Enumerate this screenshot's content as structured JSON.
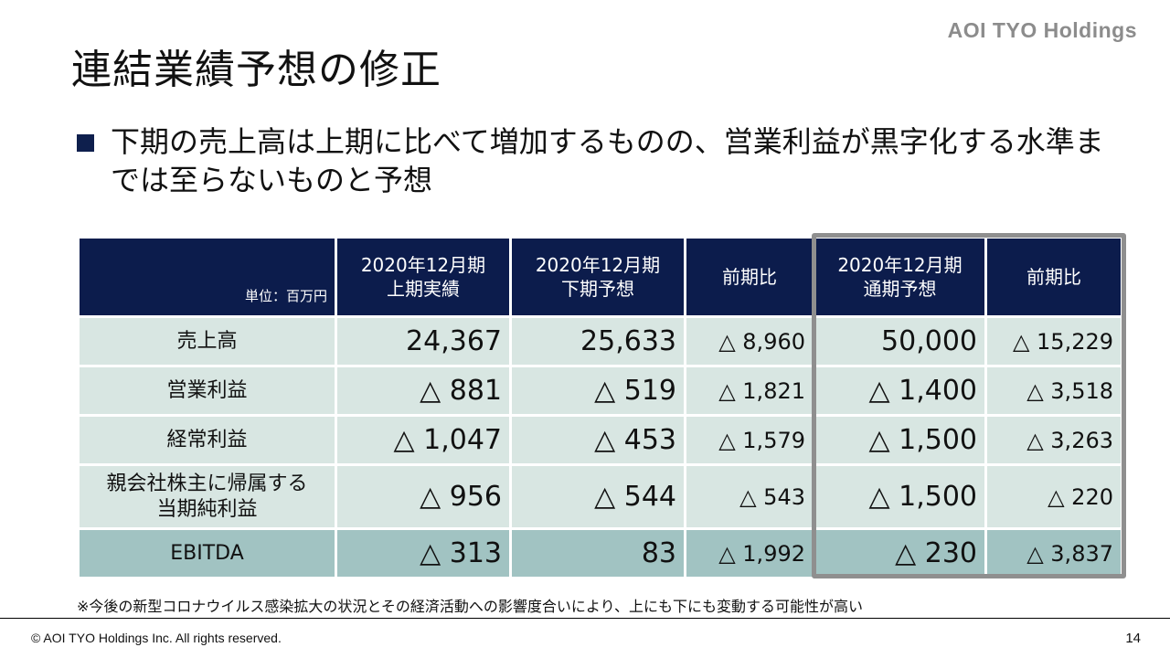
{
  "brand": "AOI TYO Holdings",
  "title": "連結業績予想の修正",
  "bullet": "下期の売上高は上期に比べて増加するものの、営業利益が黒字化する水準までは至らないものと予想",
  "table": {
    "unit_label": "単位：百万円",
    "headers": [
      "2020年12月期\n上期実績",
      "2020年12月期\n下期予想",
      "前期比",
      "2020年12月期\n通期予想",
      "前期比"
    ],
    "rows": [
      {
        "label": "売上高",
        "cells": [
          "24,367",
          "25,633",
          "△ 8,960",
          "50,000",
          "△ 15,229"
        ]
      },
      {
        "label": "営業利益",
        "cells": [
          "△ 881",
          "△ 519",
          "△ 1,821",
          "△ 1,400",
          "△ 3,518"
        ]
      },
      {
        "label": "経常利益",
        "cells": [
          "△ 1,047",
          "△ 453",
          "△ 1,579",
          "△ 1,500",
          "△ 3,263"
        ]
      },
      {
        "label": "親会社株主に帰属する\n当期純利益",
        "cells": [
          "△ 956",
          "△ 544",
          "△ 543",
          "△ 1,500",
          "△ 220"
        ]
      },
      {
        "label": "EBITDA",
        "cells": [
          "△ 313",
          "83",
          "△ 1,992",
          "△ 230",
          "△ 3,837"
        ]
      }
    ]
  },
  "note": "※今後の新型コロナウイルス感染拡大の状況とその経済活動への影響度合いにより、上にも下にも変動する可能性が高い",
  "footer": {
    "copyright": "© AOI TYO Holdings Inc. All rights reserved.",
    "page": "14"
  },
  "colors": {
    "header_bg": "#0c1c4c",
    "row_bg": "#d8e6e2",
    "ebitda_bg": "#a1c3c2",
    "highlight_border": "#8f8f8f"
  }
}
